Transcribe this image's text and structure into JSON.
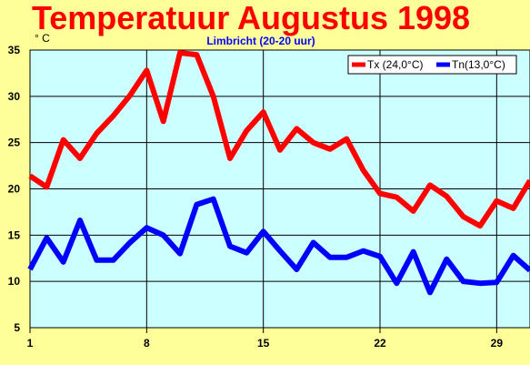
{
  "chart_data": {
    "type": "line",
    "title": "Temperatuur Augustus 1998",
    "subtitle": "Limbricht (20-20 uur)",
    "ylabel": "° C",
    "xlabel": "",
    "xlim": [
      1,
      31
    ],
    "ylim": [
      5,
      35
    ],
    "x_ticks": [
      1,
      8,
      15,
      22,
      29
    ],
    "y_ticks": [
      5,
      10,
      15,
      20,
      25,
      30,
      35
    ],
    "grid": true,
    "legend_position": "top-right",
    "x": [
      1,
      2,
      3,
      4,
      5,
      6,
      7,
      8,
      9,
      10,
      11,
      12,
      13,
      14,
      15,
      16,
      17,
      18,
      19,
      20,
      21,
      22,
      23,
      24,
      25,
      26,
      27,
      28,
      29,
      30,
      31
    ],
    "series": [
      {
        "name": "Tx (24,0°C)",
        "color": "#ff0000",
        "values": [
          21.4,
          20.2,
          25.3,
          23.3,
          26.0,
          27.9,
          30.1,
          32.8,
          27.3,
          34.7,
          34.5,
          30.0,
          23.3,
          26.3,
          28.3,
          24.2,
          26.5,
          25.0,
          24.3,
          25.4,
          22.0,
          19.5,
          19.1,
          17.6,
          20.4,
          19.2,
          17.0,
          16.0,
          18.7,
          17.9,
          20.9
        ]
      },
      {
        "name": "Tn(13,0°C)",
        "color": "#0000ff",
        "values": [
          11.3,
          14.7,
          12.1,
          16.6,
          12.3,
          12.3,
          14.2,
          15.8,
          15.0,
          13.0,
          18.3,
          18.9,
          13.8,
          13.1,
          15.4,
          13.3,
          11.3,
          14.2,
          12.6,
          12.6,
          13.3,
          12.7,
          9.8,
          13.2,
          8.8,
          12.4,
          10.0,
          9.8,
          9.9,
          12.8,
          11.2
        ]
      }
    ],
    "colors": {
      "background": "#ffff99",
      "plot_background": "#ccffff",
      "title": "#ff0000",
      "subtitle": "#0000ff",
      "grid": "#000000"
    }
  }
}
